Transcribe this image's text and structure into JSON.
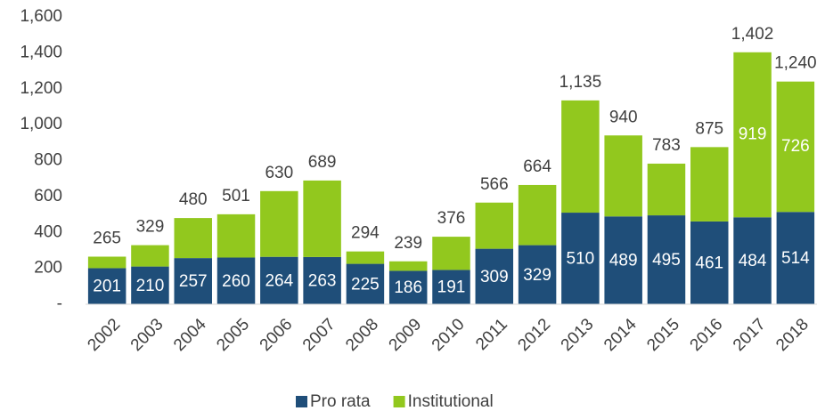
{
  "chart_data": {
    "type": "stacked_bar",
    "categories": [
      "2002",
      "2003",
      "2004",
      "2005",
      "2006",
      "2007",
      "2008",
      "2009",
      "2010",
      "2011",
      "2012",
      "2013",
      "2014",
      "2015",
      "2016",
      "2017",
      "2018"
    ],
    "series": [
      {
        "name": "Pro rata",
        "color": "#1f4e79",
        "values": [
          201,
          210,
          257,
          260,
          264,
          263,
          225,
          186,
          191,
          309,
          329,
          510,
          489,
          495,
          461,
          484,
          514
        ]
      },
      {
        "name": "Institutional",
        "color": "#92c81e",
        "values": [
          64,
          119,
          223,
          241,
          366,
          426,
          69,
          53,
          185,
          257,
          335,
          625,
          451,
          288,
          414,
          919,
          726
        ],
        "value_labels": [
          null,
          null,
          null,
          null,
          null,
          null,
          null,
          null,
          null,
          null,
          null,
          null,
          null,
          null,
          null,
          "919",
          "726"
        ]
      }
    ],
    "totals": [
      {
        "value": 265,
        "label": "265"
      },
      {
        "value": 329,
        "label": "329"
      },
      {
        "value": 480,
        "label": "480"
      },
      {
        "value": 501,
        "label": "501"
      },
      {
        "value": 630,
        "label": "630"
      },
      {
        "value": 689,
        "label": "689"
      },
      {
        "value": 294,
        "label": "294"
      },
      {
        "value": 239,
        "label": "239"
      },
      {
        "value": 376,
        "label": "376"
      },
      {
        "value": 566,
        "label": "566"
      },
      {
        "value": 664,
        "label": "664"
      },
      {
        "value": 1135,
        "label": "1,135"
      },
      {
        "value": 940,
        "label": "940"
      },
      {
        "value": 783,
        "label": "783"
      },
      {
        "value": 875,
        "label": "875"
      },
      {
        "value": 1402,
        "label": "1,402"
      },
      {
        "value": 1240,
        "label": "1,240"
      }
    ],
    "ylim": [
      0,
      1600
    ],
    "yticks": [
      {
        "value": 0,
        "label": "-"
      },
      200,
      400,
      600,
      800,
      {
        "value": 1000,
        "label": "1,000"
      },
      {
        "value": 1200,
        "label": "1,200"
      },
      {
        "value": 1400,
        "label": "1,400"
      },
      {
        "value": 1600,
        "label": "1,600"
      }
    ],
    "grid": false,
    "legend": "bottom"
  }
}
